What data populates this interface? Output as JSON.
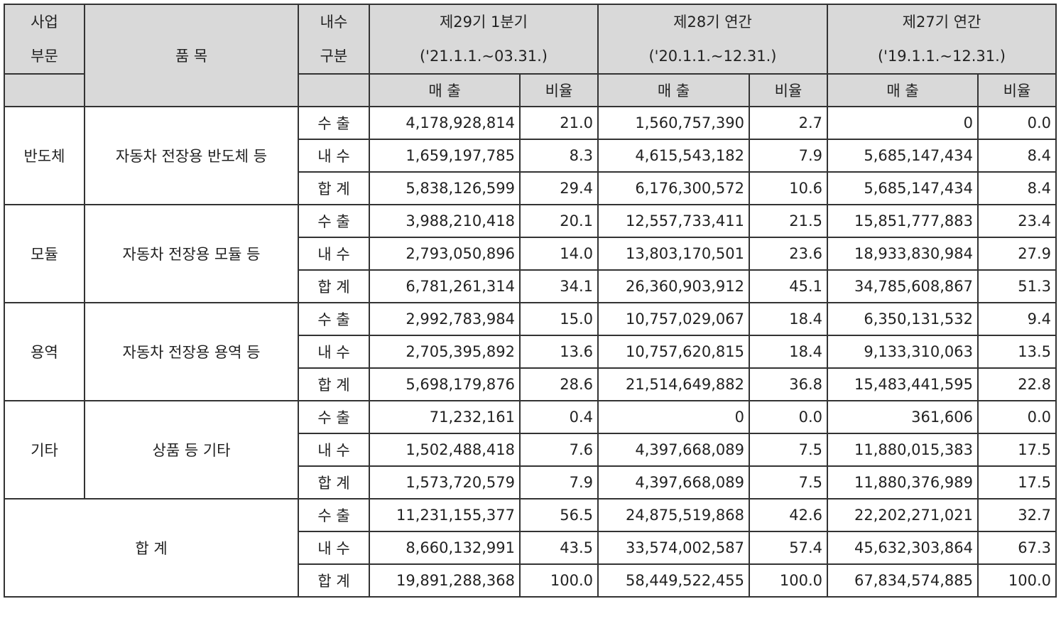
{
  "header": {
    "segment": [
      "사업",
      "부문"
    ],
    "item": "품 목",
    "domestic": [
      "내수",
      "구분"
    ],
    "periods": [
      {
        "name": "제29기 1분기",
        "range": "('21.1.1.~03.31.)"
      },
      {
        "name": "제28기 연간",
        "range": "('20.1.1.~12.31.)"
      },
      {
        "name": "제27기 연간",
        "range": "('19.1.1.~12.31.)"
      }
    ],
    "sales": "매  출",
    "ratio": "비율"
  },
  "groups": [
    {
      "segment": "반도체",
      "item": "자동차 전장용 반도체 등",
      "rows": [
        {
          "type": "수 출",
          "v": [
            "4,178,928,814",
            "21.0",
            "1,560,757,390",
            "2.7",
            "0",
            "0.0"
          ]
        },
        {
          "type": "내 수",
          "v": [
            "1,659,197,785",
            "8.3",
            "4,615,543,182",
            "7.9",
            "5,685,147,434",
            "8.4"
          ]
        },
        {
          "type": "합 계",
          "v": [
            "5,838,126,599",
            "29.4",
            "6,176,300,572",
            "10.6",
            "5,685,147,434",
            "8.4"
          ]
        }
      ]
    },
    {
      "segment": "모듈",
      "item": "자동차 전장용 모듈 등",
      "rows": [
        {
          "type": "수 출",
          "v": [
            "3,988,210,418",
            "20.1",
            "12,557,733,411",
            "21.5",
            "15,851,777,883",
            "23.4"
          ]
        },
        {
          "type": "내 수",
          "v": [
            "2,793,050,896",
            "14.0",
            "13,803,170,501",
            "23.6",
            "18,933,830,984",
            "27.9"
          ]
        },
        {
          "type": "합 계",
          "v": [
            "6,781,261,314",
            "34.1",
            "26,360,903,912",
            "45.1",
            "34,785,608,867",
            "51.3"
          ]
        }
      ]
    },
    {
      "segment": "용역",
      "item": "자동차 전장용 용역 등",
      "rows": [
        {
          "type": "수 출",
          "v": [
            "2,992,783,984",
            "15.0",
            "10,757,029,067",
            "18.4",
            "6,350,131,532",
            "9.4"
          ]
        },
        {
          "type": "내 수",
          "v": [
            "2,705,395,892",
            "13.6",
            "10,757,620,815",
            "18.4",
            "9,133,310,063",
            "13.5"
          ]
        },
        {
          "type": "합 계",
          "v": [
            "5,698,179,876",
            "28.6",
            "21,514,649,882",
            "36.8",
            "15,483,441,595",
            "22.8"
          ]
        }
      ]
    },
    {
      "segment": "기타",
      "item": "상품 등 기타",
      "rows": [
        {
          "type": "수 출",
          "v": [
            "71,232,161",
            "0.4",
            "0",
            "0.0",
            "361,606",
            "0.0"
          ]
        },
        {
          "type": "내 수",
          "v": [
            "1,502,488,418",
            "7.6",
            "4,397,668,089",
            "7.5",
            "11,880,015,383",
            "17.5"
          ]
        },
        {
          "type": "합 계",
          "v": [
            "1,573,720,579",
            "7.9",
            "4,397,668,089",
            "7.5",
            "11,880,376,989",
            "17.5"
          ]
        }
      ]
    }
  ],
  "total": {
    "label": "합 계",
    "rows": [
      {
        "type": "수 출",
        "v": [
          "11,231,155,377",
          "56.5",
          "24,875,519,868",
          "42.6",
          "22,202,271,021",
          "32.7"
        ]
      },
      {
        "type": "내 수",
        "v": [
          "8,660,132,991",
          "43.5",
          "33,574,002,587",
          "57.4",
          "45,632,303,864",
          "67.3"
        ]
      },
      {
        "type": "합 계",
        "v": [
          "19,891,288,368",
          "100.0",
          "58,449,522,455",
          "100.0",
          "67,834,574,885",
          "100.0"
        ]
      }
    ]
  }
}
